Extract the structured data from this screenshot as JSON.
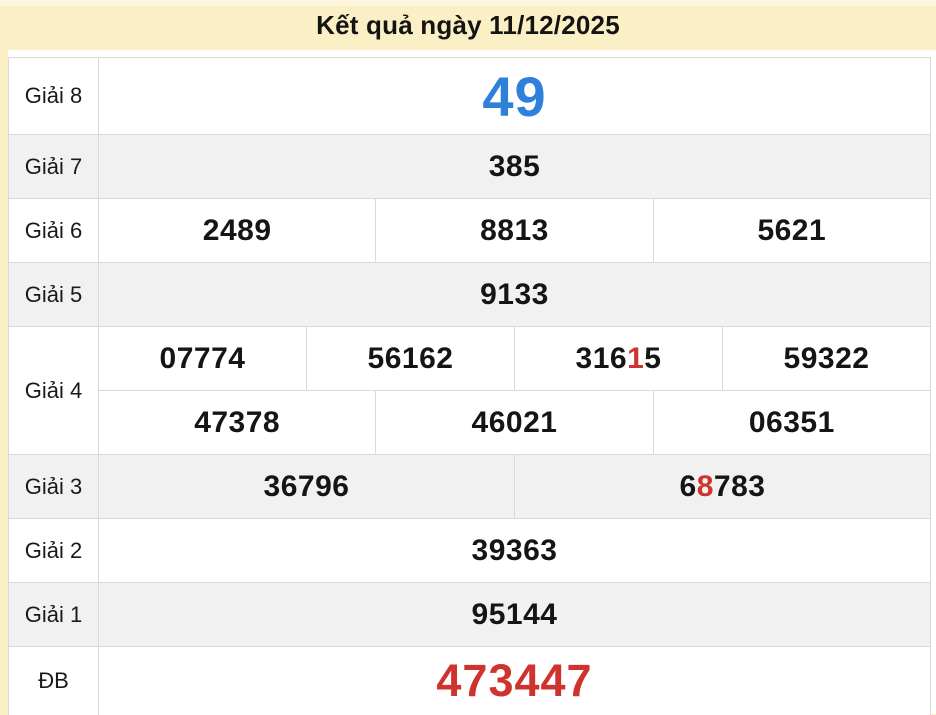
{
  "colors": {
    "cream_background": "#FBF0C5",
    "top_strip": "#FDF6DC",
    "row_gray": "#F1F1F1",
    "border": "#D9D9D9",
    "blue_accent": "#2E80DB",
    "red_accent": "#CE342D",
    "text": "#151515"
  },
  "header": {
    "title": "Kết quả ngày 11/12/2025"
  },
  "table": {
    "rows": [
      {
        "label": "Giải 8",
        "height": 77,
        "shade": "white",
        "subrows": [
          [
            {
              "text": "49",
              "style": "blue-large"
            }
          ]
        ]
      },
      {
        "label": "Giải 7",
        "height": 64,
        "shade": "gray",
        "subrows": [
          [
            {
              "text": "385"
            }
          ]
        ]
      },
      {
        "label": "Giải 6",
        "height": 64,
        "shade": "white",
        "subrows": [
          [
            {
              "text": "2489"
            },
            {
              "text": "8813"
            },
            {
              "text": "5621"
            }
          ]
        ]
      },
      {
        "label": "Giải 5",
        "height": 64,
        "shade": "gray",
        "subrows": [
          [
            {
              "text": "9133"
            }
          ]
        ]
      },
      {
        "label": "Giải 4",
        "height": 128,
        "shade": "white",
        "subrows": [
          [
            {
              "text": "07774"
            },
            {
              "text": "56162"
            },
            {
              "text": "31615",
              "highlight_index": 3
            },
            {
              "text": "59322"
            }
          ],
          [
            {
              "text": "47378"
            },
            {
              "text": "46021"
            },
            {
              "text": "06351"
            }
          ]
        ]
      },
      {
        "label": "Giải 3",
        "height": 64,
        "shade": "gray",
        "subrows": [
          [
            {
              "text": "36796"
            },
            {
              "text": "68783",
              "highlight_index": 1
            }
          ]
        ]
      },
      {
        "label": "Giải 2",
        "height": 64,
        "shade": "white",
        "subrows": [
          [
            {
              "text": "39363"
            }
          ]
        ]
      },
      {
        "label": "Giải 1",
        "height": 64,
        "shade": "gray",
        "subrows": [
          [
            {
              "text": "95144"
            }
          ]
        ]
      },
      {
        "label": "ĐB",
        "height": 68,
        "shade": "white",
        "subrows": [
          [
            {
              "text": "473447",
              "style": "red-large"
            }
          ]
        ]
      }
    ]
  }
}
